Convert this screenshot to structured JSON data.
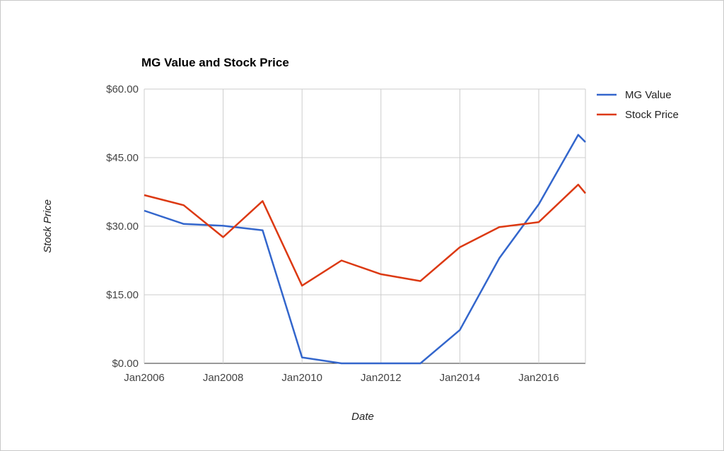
{
  "chart_data": {
    "type": "line",
    "title": "MG Value and Stock Price",
    "xlabel": "Date",
    "ylabel": "Stock Price",
    "x": [
      "Jan2006",
      "Jan2007",
      "Jan2008",
      "Jan2009",
      "Jan2010",
      "Jan2011",
      "Jan2012",
      "Jan2013",
      "Jan2014",
      "Jan2015",
      "Jan2016",
      "Jan2017",
      "Apr2017"
    ],
    "x_ticks": [
      "Jan2006",
      "Jan2008",
      "Jan2010",
      "Jan2012",
      "Jan2014",
      "Jan2016"
    ],
    "y_ticks": [
      "$0.00",
      "$15.00",
      "$30.00",
      "$45.00",
      "$60.00"
    ],
    "ylim": [
      0,
      60
    ],
    "grid": true,
    "legend_position": "right",
    "series": [
      {
        "name": "MG Value",
        "color": "#3366cc",
        "values": [
          33.4,
          30.5,
          30.1,
          29.1,
          1.3,
          0.0,
          0.0,
          0.0,
          7.3,
          23.0,
          34.8,
          50.0,
          48.4
        ]
      },
      {
        "name": "Stock Price",
        "color": "#dc3912",
        "values": [
          36.8,
          34.6,
          27.6,
          35.5,
          17.0,
          22.5,
          19.5,
          18.0,
          25.4,
          29.8,
          30.9,
          39.1,
          37.2
        ]
      }
    ]
  }
}
